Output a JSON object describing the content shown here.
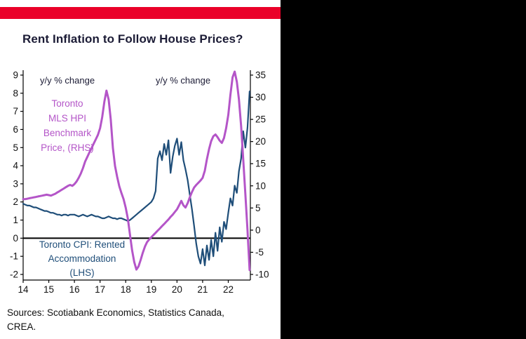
{
  "colors": {
    "accent_red": "#ea0029",
    "title_text": "#1b1b35",
    "axis_text": "#111111",
    "cpi_navy": "#1f4e79",
    "hpi_purple": "#b455c8",
    "background_black": "#000000",
    "card_white": "#ffffff"
  },
  "sources": {
    "line1": "Sources: Scotiabank Economics, Statistics Canada,",
    "line2": "CREA."
  },
  "chart_data": {
    "type": "line",
    "title": "Rent Inflation to Follow House Prices?",
    "x_start": 2014,
    "x_step_months": 1,
    "x_ticks": [
      14,
      15,
      16,
      17,
      18,
      19,
      20,
      21,
      22
    ],
    "left_axis": {
      "label": "y/y % change",
      "min": -2,
      "max": 9,
      "ticks": [
        9,
        8,
        7,
        6,
        5,
        4,
        3,
        2,
        1,
        0,
        -1,
        -2
      ]
    },
    "right_axis": {
      "label": "y/y % change",
      "min": -10,
      "max": 35,
      "ticks": [
        35,
        30,
        25,
        20,
        15,
        10,
        5,
        0,
        -5,
        -10
      ]
    },
    "zero_line": true,
    "grid": false,
    "legend_position": "annotated-inline",
    "series": [
      {
        "name": "Toronto CPI: Rented Accommodation (LHS)",
        "axis": "left",
        "color": "#1f4e79",
        "width": 2.2,
        "values": [
          1.9,
          1.85,
          1.8,
          1.8,
          1.75,
          1.7,
          1.7,
          1.65,
          1.6,
          1.55,
          1.5,
          1.5,
          1.45,
          1.4,
          1.4,
          1.35,
          1.3,
          1.3,
          1.25,
          1.3,
          1.3,
          1.25,
          1.3,
          1.3,
          1.3,
          1.25,
          1.2,
          1.25,
          1.3,
          1.25,
          1.2,
          1.25,
          1.3,
          1.25,
          1.2,
          1.2,
          1.15,
          1.1,
          1.1,
          1.15,
          1.2,
          1.15,
          1.1,
          1.1,
          1.05,
          1.1,
          1.1,
          1.05,
          1.0,
          0.95,
          1.0,
          1.1,
          1.2,
          1.3,
          1.4,
          1.5,
          1.6,
          1.7,
          1.8,
          1.9,
          2.0,
          2.2,
          2.6,
          4.4,
          4.8,
          4.3,
          5.2,
          4.6,
          5.4,
          3.6,
          4.5,
          5.1,
          5.5,
          4.6,
          5.3,
          4.3,
          3.8,
          3.2,
          2.4,
          1.6,
          0.7,
          -0.3,
          -1.0,
          -1.4,
          -0.6,
          -1.5,
          -0.4,
          -1.2,
          -0.1,
          -1.0,
          0.3,
          -0.7,
          0.6,
          -0.2,
          0.9,
          0.5,
          1.4,
          2.2,
          1.8,
          2.9,
          2.5,
          3.7,
          4.4,
          5.9,
          5.0,
          6.1,
          8.1
        ]
      },
      {
        "name": "Toronto MLS HPI Benchmark Price, (RHS)",
        "axis": "right",
        "color": "#b455c8",
        "width": 3,
        "values": [
          7.0,
          7.0,
          7.1,
          7.2,
          7.3,
          7.4,
          7.5,
          7.6,
          7.7,
          7.8,
          7.9,
          8.0,
          7.9,
          7.8,
          8.0,
          8.2,
          8.5,
          8.8,
          9.1,
          9.4,
          9.7,
          10.0,
          10.2,
          10.0,
          10.4,
          11.0,
          11.8,
          12.8,
          14.0,
          15.5,
          16.5,
          17.5,
          18.5,
          19.5,
          20.5,
          21.5,
          23.0,
          25.5,
          29.0,
          31.5,
          29.5,
          25.0,
          18.5,
          14.5,
          12.0,
          9.9,
          8.4,
          7.0,
          5.1,
          2.6,
          -1.0,
          -4.6,
          -7.2,
          -8.9,
          -8.2,
          -6.7,
          -5.1,
          -3.7,
          -2.7,
          -2.1,
          -1.6,
          -1.1,
          -0.6,
          -0.1,
          0.4,
          0.9,
          1.4,
          1.9,
          2.4,
          3.0,
          3.5,
          4.1,
          4.7,
          5.6,
          6.6,
          5.6,
          5.1,
          6.1,
          7.4,
          8.6,
          9.6,
          10.2,
          10.7,
          11.2,
          11.8,
          13.4,
          16.0,
          18.3,
          20.1,
          21.2,
          21.6,
          21.0,
          20.2,
          19.7,
          20.8,
          23.0,
          26.0,
          30.5,
          34.5,
          35.8,
          33.5,
          29.5,
          23.5,
          16.0,
          8.0,
          0.0,
          -9.0
        ]
      }
    ],
    "annotations": [
      {
        "text": "y/y % change",
        "x": 57,
        "y": 119,
        "anchor": "start",
        "size": 13,
        "color": "#1b1b35"
      },
      {
        "text": "y/y % change",
        "x": 222,
        "y": 119,
        "anchor": "start",
        "size": 13,
        "color": "#1b1b35"
      },
      {
        "lines": [
          "Toronto",
          "MLS HPI",
          "Benchmark",
          "Price, (RHS)"
        ],
        "x": 96,
        "y": 152,
        "lh": 21,
        "anchor": "middle",
        "size": 13.5,
        "color": "#b455c8"
      },
      {
        "lines": [
          "Toronto CPI: Rented",
          "Accommodation",
          "(LHS)"
        ],
        "x": 117,
        "y": 353,
        "lh": 20,
        "anchor": "middle",
        "size": 13.5,
        "color": "#1f4e79"
      }
    ]
  }
}
